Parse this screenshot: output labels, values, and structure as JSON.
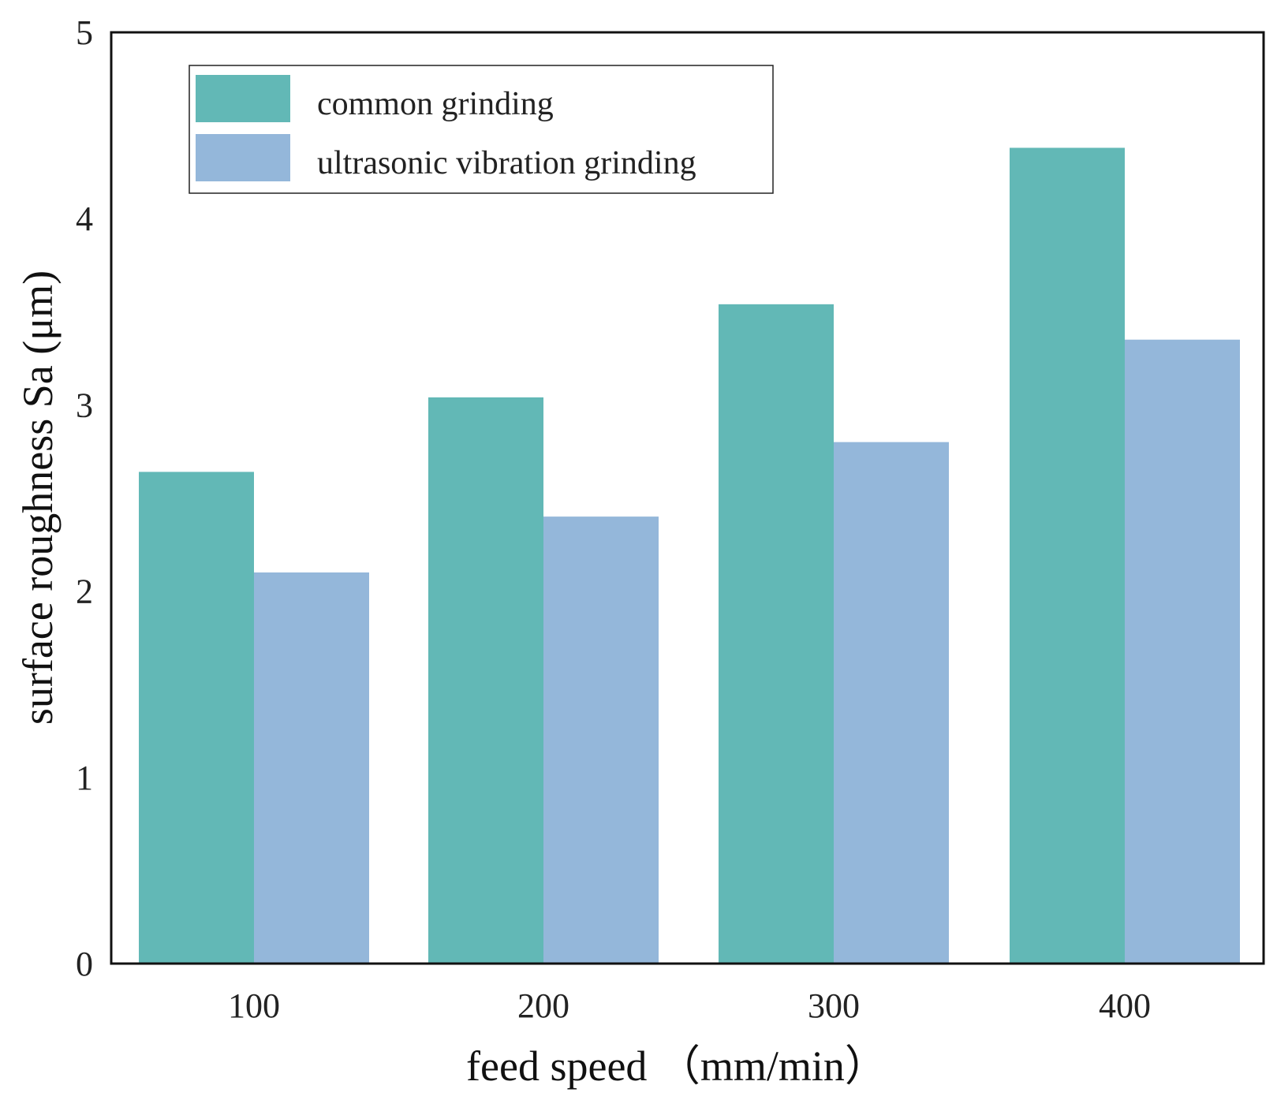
{
  "chart_data": {
    "type": "bar",
    "title": "",
    "xlabel": "feed speed （mm/min）",
    "ylabel": "surface roughness Sa (μm)",
    "categories": [
      "100",
      "200",
      "300",
      "400"
    ],
    "series": [
      {
        "name": "common grinding",
        "color": "#62b8b6",
        "values": [
          2.64,
          3.04,
          3.54,
          4.38
        ]
      },
      {
        "name": "ultrasonic vibration grinding",
        "color": "#94b7da",
        "values": [
          2.1,
          2.4,
          2.8,
          3.35
        ]
      }
    ],
    "ylim": [
      0,
      5
    ],
    "yticks": [
      "0",
      "1",
      "2",
      "3",
      "4",
      "5"
    ],
    "grid": false,
    "legend_position": "top-left"
  }
}
